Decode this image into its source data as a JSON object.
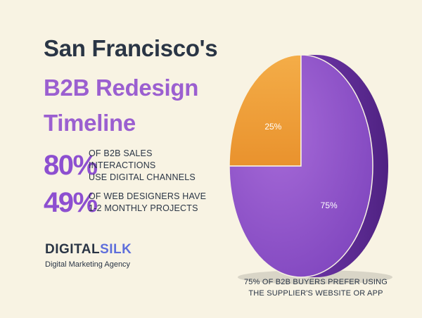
{
  "header": {
    "line1": "San Francisco's",
    "line2": "B2B Redesign",
    "line3": "Timeline"
  },
  "stats": [
    {
      "value": "80%",
      "line1": "OF B2B SALES INTERACTIONS",
      "line2": "USE DIGITAL CHANNELS"
    },
    {
      "value": "49%",
      "line1": "OF WEB DESIGNERS HAVE",
      "line2": "1-2 MONTHLY PROJECTS"
    }
  ],
  "brand": {
    "logo_part1": "DIGITAL",
    "logo_part2": "SILK",
    "tagline": "Digital Marketing Agency"
  },
  "caption": {
    "line1": "75% OF B2B BUYERS PREFER USING",
    "line2": "THE SUPPLIER'S WEBSITE OR APP"
  },
  "colors": {
    "background": "#f8f3e3",
    "purple": "#8d4fd0",
    "orange": "#f0a03a",
    "navy": "#2a3545"
  },
  "chart_data": {
    "type": "pie",
    "categories": [
      "",
      ""
    ],
    "values": [
      25,
      75
    ],
    "labels": [
      "25%",
      "75%"
    ],
    "colors": [
      "#f0a03a",
      "#8f55c8"
    ]
  }
}
